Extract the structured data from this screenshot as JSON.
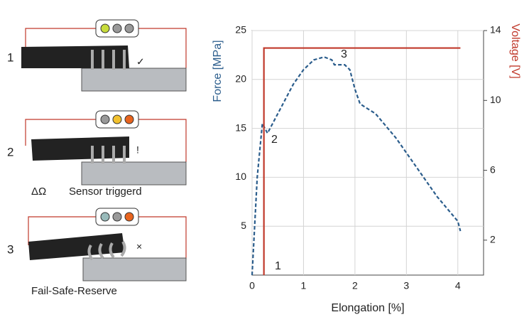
{
  "diagram": {
    "panels": [
      {
        "label": "1"
      },
      {
        "label": "2",
        "symbol": "ΔΩ",
        "caption": "Sensor triggerd"
      },
      {
        "label": "3",
        "caption": "Fail-Safe-Reserve"
      }
    ]
  },
  "chart_data": {
    "type": "line",
    "xlabel": "Elongation [%]",
    "ylabel": "Force [MPa]",
    "y2label": "Voltage [V]",
    "xlim": [
      0,
      4.5
    ],
    "xticks": [
      0,
      1,
      2,
      3,
      4
    ],
    "ylim": [
      0,
      25
    ],
    "yticks": [
      5,
      10,
      15,
      20,
      25
    ],
    "y2lim": [
      0,
      14
    ],
    "y2ticks": [
      2,
      6,
      10,
      14
    ],
    "grid": true,
    "annotations": [
      "1",
      "2",
      "3"
    ],
    "series": [
      {
        "name": "Force [MPa]",
        "color": "#2b5d8c",
        "dashed": true,
        "x": [
          0,
          0.1,
          0.2,
          0.25,
          0.3,
          0.4,
          0.6,
          0.8,
          1.0,
          1.2,
          1.4,
          1.55,
          1.6,
          1.8,
          1.9,
          2.0,
          2.1,
          2.4,
          2.8,
          3.2,
          3.6,
          4.0,
          4.05
        ],
        "values": [
          0,
          10,
          15.5,
          15,
          14.5,
          15.5,
          17.5,
          19.5,
          21,
          22,
          22.3,
          22,
          21.5,
          21.5,
          21,
          19,
          17.5,
          16.5,
          14,
          11,
          8,
          5.5,
          4.5
        ]
      },
      {
        "name": "Voltage [V]",
        "color": "#c0392b",
        "axis": "y2",
        "x": [
          0.23,
          0.23,
          0.3,
          4.05
        ],
        "values": [
          0,
          13,
          13,
          13
        ]
      }
    ]
  }
}
